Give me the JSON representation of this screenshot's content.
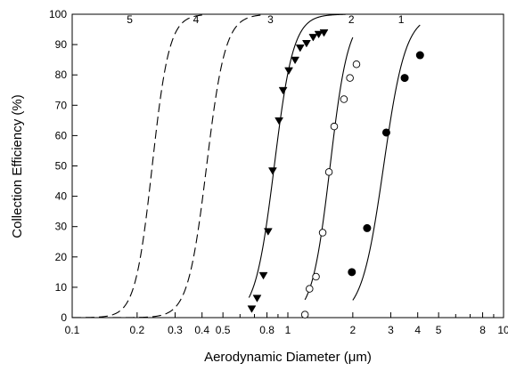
{
  "chart_data": {
    "type": "scatter",
    "title": "",
    "xlabel": "Aerodynamic Diameter  (μm)",
    "ylabel": "Collection Efficiency  (%)",
    "xscale": "log",
    "xlim": [
      0.1,
      10
    ],
    "ylim": [
      0,
      100
    ],
    "grid": false,
    "legend": "none",
    "x_ticks": [
      {
        "value": 0.1,
        "label": "0.1"
      },
      {
        "value": 0.2,
        "label": "0.2"
      },
      {
        "value": 0.3,
        "label": "0.3"
      },
      {
        "value": 0.4,
        "label": "0.4"
      },
      {
        "value": 0.5,
        "label": "0.5"
      },
      {
        "value": 0.8,
        "label": "0.8"
      },
      {
        "value": 1,
        "label": "1"
      },
      {
        "value": 2,
        "label": "2"
      },
      {
        "value": 3,
        "label": "3"
      },
      {
        "value": 4,
        "label": "4"
      },
      {
        "value": 5,
        "label": "5"
      },
      {
        "value": 8,
        "label": "8"
      },
      {
        "value": 10,
        "label": "10"
      }
    ],
    "x_minor_ticks": [
      0.6,
      0.7,
      0.9,
      6,
      7,
      9
    ],
    "y_ticks": [
      0,
      10,
      20,
      30,
      40,
      50,
      60,
      70,
      80,
      90,
      100
    ],
    "series": [
      {
        "label": "1",
        "marker": "filled-circle",
        "points": [
          [
            1.98,
            15
          ],
          [
            2.33,
            29.5
          ],
          [
            2.86,
            61
          ],
          [
            3.48,
            79
          ],
          [
            4.1,
            86.5
          ]
        ],
        "fit_curve": {
          "style": "solid",
          "d50": 2.78,
          "steepness": 8.5,
          "x_range": [
            2.0,
            4.1
          ]
        }
      },
      {
        "label": "2",
        "marker": "open-circle",
        "points": [
          [
            1.2,
            1
          ],
          [
            1.26,
            9.5
          ],
          [
            1.35,
            13.5
          ],
          [
            1.45,
            28
          ],
          [
            1.55,
            48
          ],
          [
            1.64,
            63
          ],
          [
            1.82,
            72
          ],
          [
            1.94,
            79
          ],
          [
            2.08,
            83.5
          ]
        ],
        "fit_curve": {
          "style": "solid",
          "d50": 1.57,
          "steepness": 10.3,
          "x_range": [
            1.2,
            2.0
          ]
        }
      },
      {
        "label": "3",
        "marker": "filled-triangle-down",
        "points": [
          [
            0.68,
            3
          ],
          [
            0.72,
            6.5
          ],
          [
            0.77,
            14
          ],
          [
            0.81,
            28.5
          ],
          [
            0.85,
            48.5
          ],
          [
            0.91,
            65
          ],
          [
            0.95,
            75
          ],
          [
            1.01,
            81.5
          ],
          [
            1.08,
            85
          ],
          [
            1.14,
            89
          ],
          [
            1.22,
            90.5
          ],
          [
            1.31,
            92.5
          ],
          [
            1.39,
            93.5
          ],
          [
            1.47,
            94
          ]
        ],
        "fit_curve": {
          "style": "solid",
          "d50": 0.865,
          "steepness": 9.8,
          "x_range": [
            0.66,
            1.85
          ]
        }
      },
      {
        "label": "4",
        "marker": "none",
        "points": [],
        "fit_curve": {
          "style": "dashed",
          "d50": 0.42,
          "steepness": 10.0,
          "x_range": [
            0.1,
            0.75
          ]
        }
      },
      {
        "label": "5",
        "marker": "none",
        "points": [],
        "fit_curve": {
          "style": "dashed",
          "d50": 0.235,
          "steepness": 11.0,
          "x_range": [
            0.1,
            0.4
          ]
        }
      }
    ],
    "curve_labels": [
      {
        "text": "5",
        "x": 0.185,
        "y": 97
      },
      {
        "text": "4",
        "x": 0.375,
        "y": 97
      },
      {
        "text": "3",
        "x": 0.83,
        "y": 97
      },
      {
        "text": "2",
        "x": 1.97,
        "y": 97
      },
      {
        "text": "1",
        "x": 3.35,
        "y": 97
      }
    ]
  }
}
